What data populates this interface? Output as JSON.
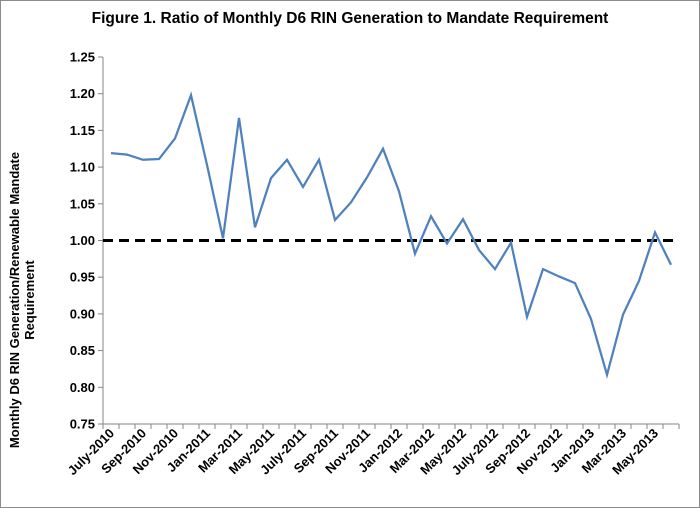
{
  "chart_data": {
    "type": "line",
    "title": "Figure 1. Ratio of Monthly D6 RIN Generation to Mandate Requirement",
    "ylabel_lines": [
      "Monthly D6 RIN Generation/Renewable Mandate",
      "Requirement"
    ],
    "xlabel": "",
    "ylim": [
      0.75,
      1.25
    ],
    "yticks": [
      "0.75",
      "0.80",
      "0.85",
      "0.90",
      "0.95",
      "1.00",
      "1.05",
      "1.10",
      "1.15",
      "1.20",
      "1.25"
    ],
    "grid": false,
    "legend": "none",
    "x": [
      "July-2010",
      "Aug-2010",
      "Sep-2010",
      "Oct-2010",
      "Nov-2010",
      "Dec-2010",
      "Jan-2011",
      "Feb-2011",
      "Mar-2011",
      "Apr-2011",
      "May-2011",
      "Jun-2011",
      "July-2011",
      "Aug-2011",
      "Sep-2011",
      "Oct-2011",
      "Nov-2011",
      "Dec-2011",
      "Jan-2012",
      "Feb-2012",
      "Mar-2012",
      "Apr-2012",
      "May-2012",
      "Jun-2012",
      "July-2012",
      "Aug-2012",
      "Sep-2012",
      "Oct-2012",
      "Nov-2012",
      "Dec-2012",
      "Jan-2013",
      "Feb-2013",
      "Mar-2013",
      "Apr-2013",
      "May-2013",
      "Jun-2013"
    ],
    "xtick_labels": [
      {
        "index": 0,
        "label": "July-2010"
      },
      {
        "index": 2,
        "label": "Sep-2010"
      },
      {
        "index": 4,
        "label": "Nov-2010"
      },
      {
        "index": 6,
        "label": "Jan-2011"
      },
      {
        "index": 8,
        "label": "Mar-2011"
      },
      {
        "index": 10,
        "label": "May-2011"
      },
      {
        "index": 12,
        "label": "July-2011"
      },
      {
        "index": 14,
        "label": "Sep-2011"
      },
      {
        "index": 16,
        "label": "Nov-2011"
      },
      {
        "index": 18,
        "label": "Jan-2012"
      },
      {
        "index": 20,
        "label": "Mar-2012"
      },
      {
        "index": 22,
        "label": "May-2012"
      },
      {
        "index": 24,
        "label": "July-2012"
      },
      {
        "index": 26,
        "label": "Sep-2012"
      },
      {
        "index": 28,
        "label": "Nov-2012"
      },
      {
        "index": 30,
        "label": "Jan-2013"
      },
      {
        "index": 32,
        "label": "Mar-2013"
      },
      {
        "index": 34,
        "label": "May-2013"
      }
    ],
    "series": [
      {
        "color": "#4f81bd",
        "values": [
          1.119,
          1.117,
          1.11,
          1.111,
          1.139,
          1.198,
          1.103,
          1.003,
          1.167,
          1.018,
          1.085,
          1.11,
          1.073,
          1.11,
          1.028,
          1.052,
          1.086,
          1.125,
          1.067,
          0.982,
          1.033,
          0.996,
          1.029,
          0.987,
          0.961,
          0.997,
          0.896,
          0.961,
          0.951,
          0.942,
          0.893,
          0.817,
          0.899,
          0.945,
          1.011,
          0.967
        ]
      }
    ],
    "reference_line": {
      "value": 1.0,
      "style": "dashed",
      "color": "#000000"
    }
  }
}
